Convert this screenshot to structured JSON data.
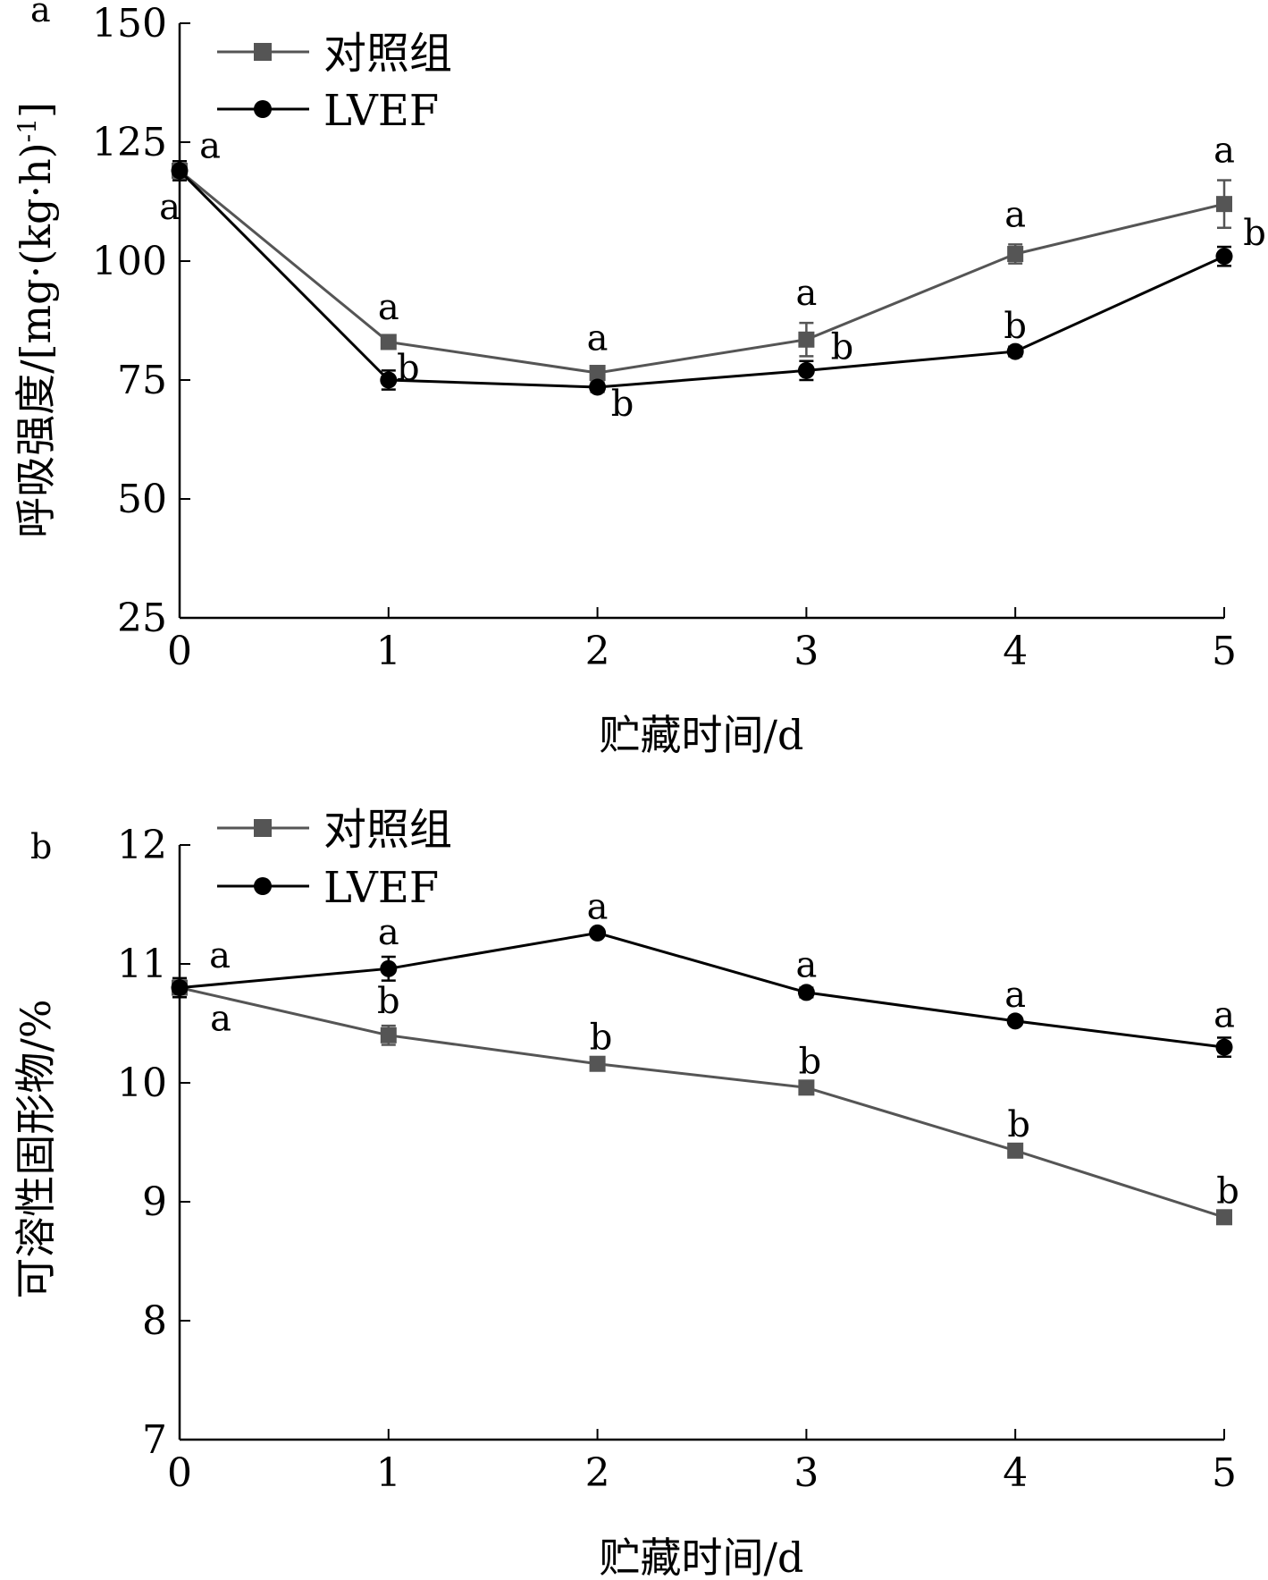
{
  "chart_data": [
    {
      "type": "line",
      "panel_label": "a",
      "xlabel": "贮藏时间/d",
      "ylabel": "呼吸强度/[mg·(kg·h)",
      "ylabel_sup": "-1",
      "ylabel_close": "]",
      "x": [
        0,
        1,
        2,
        3,
        4,
        5
      ],
      "x_ticks": [
        "0",
        "1",
        "2",
        "3",
        "4",
        "5"
      ],
      "xlim": [
        0,
        5
      ],
      "ylim": [
        25,
        150
      ],
      "y_ticks": [
        "25",
        "50",
        "75",
        "100",
        "125",
        "150"
      ],
      "y_tick_values": [
        25,
        50,
        75,
        100,
        125,
        150
      ],
      "grid": false,
      "legend_position": "top-left",
      "series": [
        {
          "name": "对照组",
          "color": "#555555",
          "marker": "square",
          "values": [
            119,
            83,
            76.5,
            83.5,
            101.5,
            112
          ],
          "errors": [
            2,
            1,
            1,
            3.5,
            2,
            5
          ],
          "letters": [
            "a",
            "a",
            "a",
            "a",
            "a",
            "a"
          ]
        },
        {
          "name": "LVEF",
          "color": "#000000",
          "marker": "circle",
          "values": [
            119,
            75,
            73.5,
            77,
            81,
            101
          ],
          "errors": [
            2,
            2,
            1,
            2,
            1,
            2
          ],
          "letters": [
            "a",
            "b",
            "b",
            "b",
            "b",
            "b"
          ]
        }
      ]
    },
    {
      "type": "line",
      "panel_label": "b",
      "xlabel": "贮藏时间/d",
      "ylabel": "可溶性固形物/%",
      "x": [
        0,
        1,
        2,
        3,
        4,
        5
      ],
      "x_ticks": [
        "0",
        "1",
        "2",
        "3",
        "4",
        "5"
      ],
      "xlim": [
        0,
        5
      ],
      "ylim": [
        7,
        12
      ],
      "y_ticks": [
        "7",
        "8",
        "9",
        "10",
        "11",
        "12"
      ],
      "y_tick_values": [
        7,
        8,
        9,
        10,
        11,
        12
      ],
      "grid": false,
      "legend_position": "top-left",
      "series": [
        {
          "name": "对照组",
          "color": "#555555",
          "marker": "square",
          "values": [
            10.8,
            10.4,
            10.16,
            9.96,
            9.43,
            8.87
          ],
          "errors": [
            0.08,
            0.08,
            0.03,
            0.03,
            0.03,
            0.03
          ],
          "letters": [
            "a",
            "b",
            "b",
            "b",
            "b",
            "b"
          ]
        },
        {
          "name": "LVEF",
          "color": "#000000",
          "marker": "circle",
          "values": [
            10.8,
            10.96,
            11.26,
            10.76,
            10.52,
            10.3
          ],
          "errors": [
            0.08,
            0.1,
            0.03,
            0.04,
            0.03,
            0.08
          ],
          "letters": [
            "a",
            "a",
            "a",
            "a",
            "a",
            "a"
          ]
        }
      ]
    }
  ]
}
